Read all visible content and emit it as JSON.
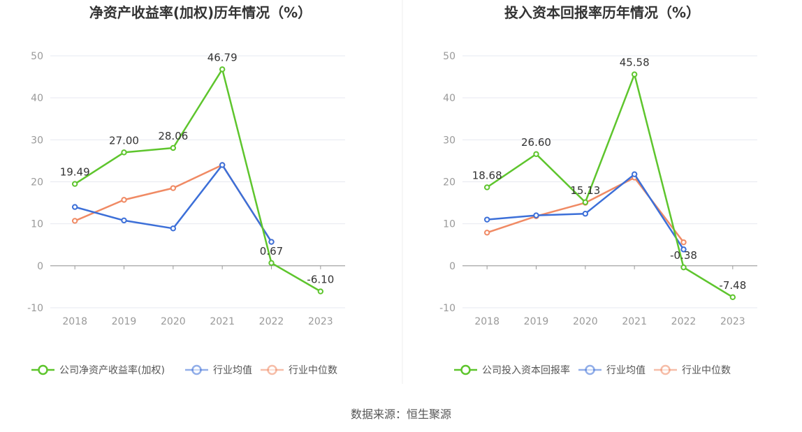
{
  "source_text": "数据来源：恒生聚源",
  "colors": {
    "company": "#5ec52d",
    "avg": "#3c6fd8",
    "median": "#f08a64",
    "grid": "#e6e8f0",
    "axis": "#999999"
  },
  "chart_data": [
    {
      "type": "line",
      "title": "净资产收益率(加权)历年情况（%）",
      "categories": [
        "2018",
        "2019",
        "2020",
        "2021",
        "2022",
        "2023"
      ],
      "ylim": [
        -10,
        50
      ],
      "yticks": [
        "-10",
        "0",
        "10",
        "20",
        "30",
        "40",
        "50"
      ],
      "grid": true,
      "legend_position": "bottom",
      "series": [
        {
          "name": "公司净资产收益率(加权)",
          "color": "#5ec52d",
          "values": [
            19.49,
            27.0,
            28.06,
            46.79,
            0.67,
            -6.1
          ],
          "labels": [
            "19.49",
            "27.00",
            "28.06",
            "46.79",
            "0.67",
            "-6.10"
          ]
        },
        {
          "name": "行业均值",
          "color": "#3c6fd8",
          "values": [
            14.0,
            10.8,
            8.9,
            24.0,
            5.7,
            null
          ]
        },
        {
          "name": "行业中位数",
          "color": "#f08a64",
          "values": [
            10.7,
            15.7,
            18.5,
            24.0,
            5.7,
            null
          ]
        }
      ]
    },
    {
      "type": "line",
      "title": "投入资本回报率历年情况（%）",
      "categories": [
        "2018",
        "2019",
        "2020",
        "2021",
        "2022",
        "2023"
      ],
      "ylim": [
        -10,
        50
      ],
      "yticks": [
        "-10",
        "0",
        "10",
        "20",
        "30",
        "40",
        "50"
      ],
      "grid": true,
      "legend_position": "bottom",
      "series": [
        {
          "name": "公司投入资本回报率",
          "color": "#5ec52d",
          "values": [
            18.68,
            26.6,
            15.13,
            45.58,
            -0.38,
            -7.48
          ],
          "labels": [
            "18.68",
            "26.60",
            "15.13",
            "45.58",
            "-0.38",
            "-7.48"
          ]
        },
        {
          "name": "行业均值",
          "color": "#3c6fd8",
          "values": [
            11.0,
            12.0,
            12.4,
            21.8,
            3.9,
            null
          ]
        },
        {
          "name": "行业中位数",
          "color": "#f08a64",
          "values": [
            7.9,
            11.8,
            15.0,
            21.0,
            5.6,
            null
          ]
        }
      ]
    }
  ]
}
